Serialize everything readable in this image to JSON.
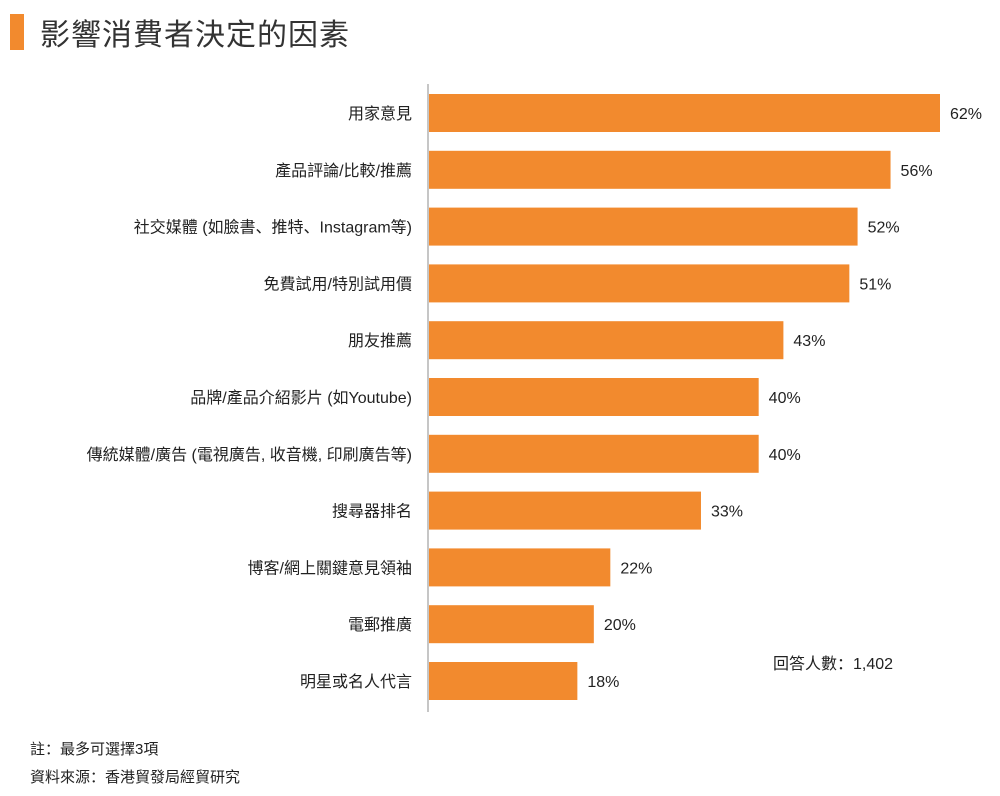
{
  "title": "影響消費者決定的因素",
  "respondents": "回答人數：1,402",
  "note": "註：最多可選擇3項",
  "source": "資料來源：香港貿發局經貿研究",
  "colors": {
    "bar": "#f28a2e",
    "accent": "#f28a2e",
    "axis": "#8c8c8c"
  },
  "chart_data": {
    "type": "bar",
    "orientation": "horizontal",
    "title": "影響消費者決定的因素",
    "xlabel": "",
    "ylabel": "",
    "xlim": [
      0,
      62
    ],
    "grid": false,
    "categories": [
      "用家意見",
      "產品評論/比較/推薦",
      "社交媒體 (如臉書、推特、Instagram等)",
      "免費試用/特別試用價",
      "朋友推薦",
      "品牌/產品介紹影片 (如Youtube)",
      "傳統媒體/廣告 (電視廣告, 收音機, 印刷廣告等)",
      "搜尋器排名",
      "博客/網上關鍵意見領袖",
      "電郵推廣",
      "明星或名人代言"
    ],
    "values": [
      62,
      56,
      52,
      51,
      43,
      40,
      40,
      33,
      22,
      20,
      18
    ],
    "value_labels": [
      "62%",
      "56%",
      "52%",
      "51%",
      "43%",
      "40%",
      "40%",
      "33%",
      "22%",
      "20%",
      "18%"
    ]
  }
}
